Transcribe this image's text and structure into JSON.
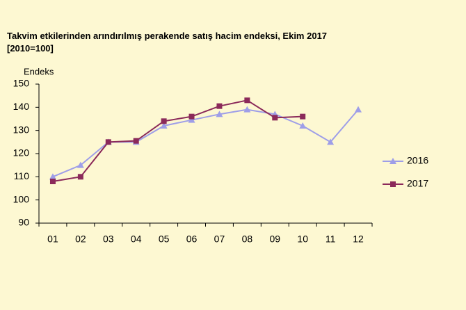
{
  "chart_data": {
    "type": "line",
    "title": "Takvim etkilerinden arındırılmış perakende satış hacim endeksi, Ekim 2017",
    "subtitle": "[2010=100]",
    "y_label": "Endeks",
    "categories": [
      "01",
      "02",
      "03",
      "04",
      "05",
      "06",
      "07",
      "08",
      "09",
      "10",
      "11",
      "12"
    ],
    "series": [
      {
        "name": "2016",
        "color": "#9e9ee8",
        "marker": "triangle",
        "values": [
          110,
          115,
          125,
          125,
          132,
          134.5,
          137,
          139,
          137,
          132,
          125,
          139
        ]
      },
      {
        "name": "2017",
        "color": "#8b2a5a",
        "marker": "square",
        "values": [
          108,
          110,
          125,
          125.5,
          134,
          136,
          140.5,
          143,
          135.5,
          136,
          null,
          null
        ]
      }
    ],
    "ylim": [
      90,
      150
    ],
    "yticks": [
      90,
      100,
      110,
      120,
      130,
      140,
      150
    ],
    "grid": false,
    "legend": "right"
  }
}
